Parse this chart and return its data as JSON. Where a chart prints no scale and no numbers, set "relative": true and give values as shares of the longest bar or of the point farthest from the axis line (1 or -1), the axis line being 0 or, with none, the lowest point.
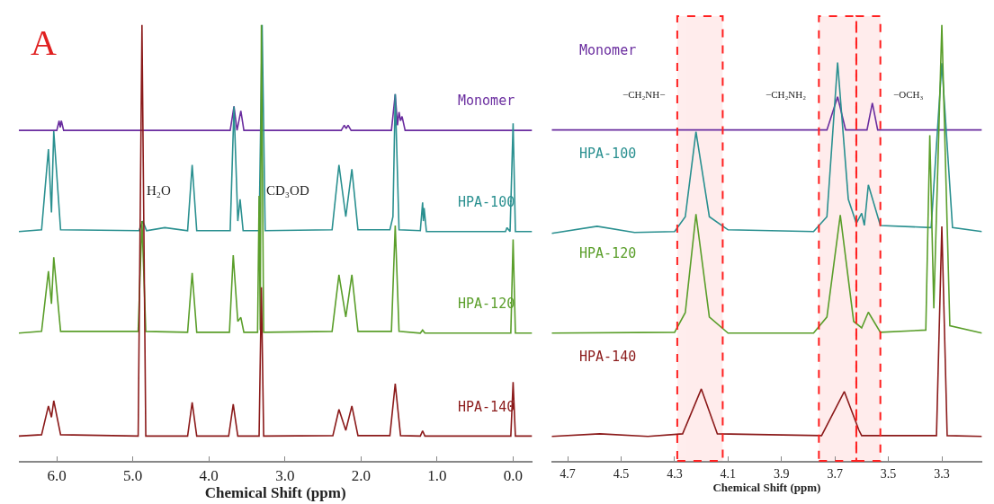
{
  "chart_data": [
    {
      "type": "line",
      "relative": true,
      "xlabel": "Chemical Shift (ppm)",
      "xlim": [
        6.5,
        -0.25
      ],
      "xticks": [
        {
          "value": 6,
          "label": "6.0"
        },
        {
          "value": 5,
          "label": "5.0"
        },
        {
          "value": 4,
          "label": "4.0"
        },
        {
          "value": 3,
          "label": "3.0"
        },
        {
          "value": 2,
          "label": "2.0"
        },
        {
          "value": 1,
          "label": "1.0"
        },
        {
          "value": 0,
          "label": "0.0"
        }
      ],
      "tick_labels": "x",
      "annotations": [
        "A",
        {
          "text": "H₂O",
          "x": 4.88,
          "y": 0.6
        },
        {
          "text": "CD₃OD",
          "x": 3.31,
          "y": 0.6
        }
      ],
      "series": [
        {
          "name": "Monomer",
          "color": "#6a2d9f",
          "x": [
            6.5,
            6.0,
            5.97,
            5.955,
            5.94,
            5.91,
            3.72,
            3.67,
            3.63,
            3.58,
            3.54,
            2.26,
            2.22,
            2.195,
            2.17,
            2.13,
            1.6,
            1.55,
            1.52,
            1.5,
            1.48,
            1.46,
            1.42,
            -0.25
          ],
          "values": [
            0.758,
            0.758,
            0.78,
            0.765,
            0.78,
            0.758,
            0.758,
            0.813,
            0.758,
            0.803,
            0.758,
            0.758,
            0.77,
            0.762,
            0.77,
            0.758,
            0.758,
            0.841,
            0.77,
            0.8,
            0.78,
            0.79,
            0.758,
            0.758
          ]
        },
        {
          "name": "HPA-100",
          "color": "#2a9090",
          "x": [
            6.5,
            6.2,
            6.11,
            6.07,
            6.04,
            5.95,
            4.92,
            4.87,
            4.82,
            4.58,
            4.28,
            4.22,
            4.16,
            3.72,
            3.67,
            3.62,
            3.59,
            3.55,
            3.34,
            3.3,
            3.26,
            2.38,
            2.29,
            2.2,
            2.12,
            2.04,
            1.62,
            1.58,
            1.55,
            1.5,
            1.22,
            1.19,
            1.18,
            1.17,
            1.14,
            0.1,
            0.08,
            0.04,
            0.0,
            -0.03,
            -0.25
          ],
          "values": [
            0.526,
            0.53,
            0.715,
            0.57,
            0.756,
            0.53,
            0.528,
            0.55,
            0.528,
            0.535,
            0.528,
            0.679,
            0.528,
            0.528,
            0.813,
            0.55,
            0.6,
            0.528,
            0.528,
            1.0,
            0.528,
            0.53,
            0.679,
            0.56,
            0.669,
            0.53,
            0.53,
            0.56,
            0.841,
            0.53,
            0.528,
            0.593,
            0.55,
            0.58,
            0.526,
            0.526,
            0.535,
            0.526,
            0.774,
            0.526,
            0.526
          ]
        },
        {
          "name": "HPA-120",
          "color": "#5a9e2a",
          "x": [
            6.5,
            6.2,
            6.11,
            6.07,
            6.04,
            5.95,
            4.93,
            4.88,
            4.83,
            4.28,
            4.22,
            4.16,
            3.73,
            3.68,
            3.62,
            3.58,
            3.54,
            3.36,
            3.34,
            3.325,
            3.31,
            3.28,
            2.38,
            2.29,
            2.2,
            2.12,
            2.04,
            1.6,
            1.55,
            1.5,
            1.22,
            1.19,
            1.16,
            0.03,
            0.0,
            -0.03,
            -0.25
          ],
          "values": [
            0.293,
            0.297,
            0.435,
            0.36,
            0.467,
            0.297,
            0.297,
            0.55,
            0.297,
            0.295,
            0.431,
            0.295,
            0.295,
            0.472,
            0.32,
            0.329,
            0.295,
            0.295,
            0.608,
            0.3,
            1.0,
            0.295,
            0.297,
            0.427,
            0.33,
            0.427,
            0.297,
            0.297,
            0.54,
            0.297,
            0.293,
            0.3,
            0.293,
            0.293,
            0.508,
            0.293,
            0.293
          ]
        },
        {
          "name": "HPA-140",
          "color": "#8b1a1a",
          "x": [
            6.5,
            6.2,
            6.11,
            6.07,
            6.04,
            5.95,
            4.93,
            4.88,
            4.83,
            4.28,
            4.22,
            4.16,
            3.74,
            3.68,
            3.62,
            3.34,
            3.31,
            3.28,
            2.37,
            2.29,
            2.2,
            2.12,
            2.04,
            1.62,
            1.55,
            1.48,
            1.22,
            1.19,
            1.16,
            0.03,
            0.0,
            -0.03,
            -0.25
          ],
          "values": [
            0.057,
            0.06,
            0.126,
            0.1,
            0.138,
            0.06,
            0.057,
            1.0,
            0.057,
            0.057,
            0.134,
            0.057,
            0.057,
            0.13,
            0.057,
            0.057,
            0.398,
            0.057,
            0.058,
            0.118,
            0.07,
            0.126,
            0.058,
            0.058,
            0.177,
            0.058,
            0.057,
            0.069,
            0.057,
            0.057,
            0.181,
            0.057,
            0.057
          ]
        }
      ]
    },
    {
      "type": "line",
      "relative": true,
      "xlabel": "Chemical Shift (ppm)",
      "xlim": [
        4.76,
        3.15
      ],
      "xticks": [
        4.7,
        4.5,
        4.3,
        4.1,
        3.9,
        3.7,
        3.5,
        3.3
      ],
      "tick_labels": "x",
      "bands": [
        {
          "axis": "x",
          "from": 4.29,
          "to": 4.12,
          "label": "−CH₂NH−",
          "color": "#ff2020"
        },
        {
          "axis": "x",
          "from": 3.76,
          "to": 3.62,
          "label": "−CH₂NH₂",
          "color": "#ff2020"
        },
        {
          "axis": "x",
          "from": 3.62,
          "to": 3.53,
          "label": "−OCH₃",
          "color": "#ff2020"
        }
      ],
      "series": [
        {
          "name": "Monomer",
          "color": "#6a2d9f",
          "x": [
            4.76,
            3.73,
            3.69,
            3.66,
            3.58,
            3.56,
            3.54,
            3.15
          ],
          "values": [
            0.759,
            0.759,
            0.835,
            0.759,
            0.759,
            0.821,
            0.759,
            0.759
          ]
        },
        {
          "name": "HPA-100",
          "color": "#2a9090",
          "x": [
            4.76,
            4.59,
            4.45,
            4.3,
            4.26,
            4.22,
            4.17,
            4.1,
            3.78,
            3.73,
            3.69,
            3.65,
            3.62,
            3.6,
            3.59,
            3.575,
            3.53,
            3.34,
            3.3,
            3.26,
            3.15
          ],
          "values": [
            0.522,
            0.538,
            0.524,
            0.526,
            0.56,
            0.755,
            0.56,
            0.53,
            0.526,
            0.56,
            0.914,
            0.6,
            0.545,
            0.568,
            0.54,
            0.633,
            0.54,
            0.535,
            0.912,
            0.535,
            0.526
          ]
        },
        {
          "name": "HPA-120",
          "color": "#5a9e2a",
          "x": [
            4.76,
            4.3,
            4.26,
            4.22,
            4.17,
            4.1,
            3.78,
            3.73,
            3.68,
            3.63,
            3.6,
            3.575,
            3.53,
            3.36,
            3.345,
            3.33,
            3.3,
            3.27,
            3.15
          ],
          "values": [
            0.293,
            0.295,
            0.34,
            0.566,
            0.33,
            0.293,
            0.293,
            0.33,
            0.564,
            0.32,
            0.305,
            0.341,
            0.295,
            0.3,
            0.747,
            0.35,
            1.0,
            0.31,
            0.293
          ]
        },
        {
          "name": "HPA-140",
          "color": "#8b1a1a",
          "x": [
            4.76,
            4.58,
            4.4,
            4.27,
            4.2,
            4.14,
            3.75,
            3.665,
            3.61,
            3.6,
            3.32,
            3.3,
            3.28,
            3.15
          ],
          "values": [
            0.056,
            0.062,
            0.056,
            0.062,
            0.165,
            0.062,
            0.058,
            0.159,
            0.07,
            0.058,
            0.058,
            0.538,
            0.058,
            0.056
          ]
        }
      ]
    }
  ]
}
